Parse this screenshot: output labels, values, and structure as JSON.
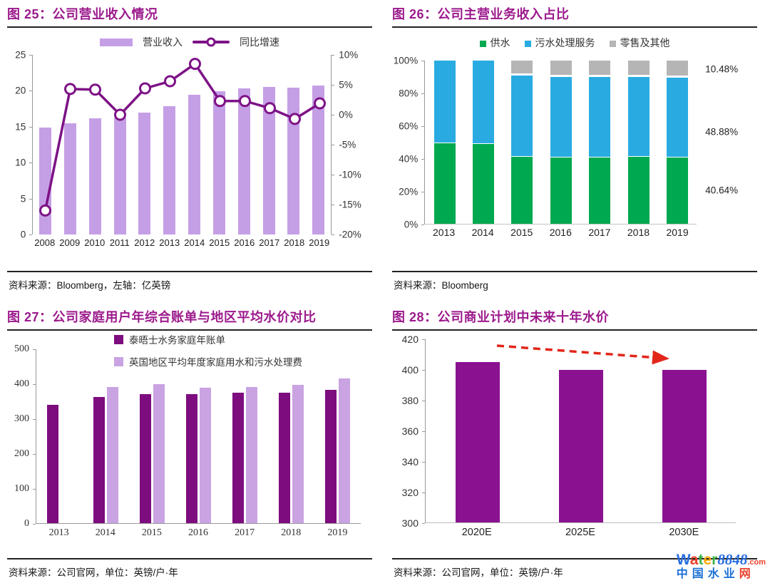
{
  "accent": {
    "title_color": "#9c1a8c",
    "rule_color": "#222222"
  },
  "panels": [
    {
      "title": "图 25：公司营业收入情况",
      "source": "资料来源：Bloomberg，左轴：亿英镑"
    },
    {
      "title": "图 26：公司主营业务收入占比",
      "source": "资料来源：Bloomberg"
    },
    {
      "title": "图 27：公司家庭用户年综合账单与地区平均水价对比",
      "source": "资料来源：公司官网，单位：英镑/户·年"
    },
    {
      "title": "图 28：公司商业计划中未来十年水价",
      "source": "资料来源：公司官网，单位：英镑/户·年"
    }
  ],
  "chart_data": [
    {
      "type": "bar+line",
      "title": "公司营业收入情况",
      "categories": [
        "2008",
        "2009",
        "2010",
        "2011",
        "2012",
        "2013",
        "2014",
        "2015",
        "2016",
        "2017",
        "2018",
        "2019"
      ],
      "series": [
        {
          "name": "营业收入",
          "type": "bar",
          "axis": "left",
          "color": "#c59fe6",
          "values": [
            14.9,
            15.5,
            16.2,
            16.3,
            17.0,
            17.9,
            19.4,
            19.9,
            20.3,
            20.5,
            20.4,
            20.7
          ]
        },
        {
          "name": "同比增速",
          "type": "line",
          "axis": "right",
          "color": "#7d1286",
          "values": [
            -16.0,
            4.3,
            4.2,
            0.0,
            4.4,
            5.6,
            8.5,
            2.3,
            2.3,
            1.1,
            -0.7,
            1.9
          ]
        }
      ],
      "left_axis": {
        "min": 0,
        "max": 25,
        "ticks": [
          25,
          20,
          15,
          10,
          5,
          0
        ],
        "unit": "亿英镑"
      },
      "right_axis": {
        "min": -20,
        "max": 10,
        "ticks": [
          10,
          5,
          0,
          -5,
          -10,
          -15,
          -20
        ],
        "format": "%"
      },
      "legend_position": "top",
      "grid": false
    },
    {
      "type": "stacked-bar",
      "title": "公司主营业务收入占比",
      "categories": [
        "2013",
        "2014",
        "2015",
        "2016",
        "2017",
        "2018",
        "2019"
      ],
      "series": [
        {
          "name": "供水",
          "color": "#00a84f",
          "values": [
            49.5,
            49,
            41,
            40.5,
            40.5,
            41,
            40.64
          ]
        },
        {
          "name": "污水处理服务",
          "color": "#29abe2",
          "values": [
            50.5,
            51,
            50,
            49.5,
            49.5,
            49,
            48.88
          ]
        },
        {
          "name": "零售及其他",
          "color": "#b5b5b5",
          "values": [
            0,
            0,
            9,
            10,
            10,
            10,
            10.48
          ]
        }
      ],
      "y_axis": {
        "min": 0,
        "max": 100,
        "ticks": [
          100,
          80,
          60,
          40,
          20,
          0
        ],
        "format": "%"
      },
      "annotations": [
        "10.48%",
        "48.88%",
        "40.64%"
      ],
      "legend_position": "top",
      "grid": false
    },
    {
      "type": "grouped-bar",
      "title": "公司家庭用户年综合账单与地区平均水价对比",
      "categories": [
        "2013",
        "2014",
        "2015",
        "2016",
        "2017",
        "2018",
        "2019"
      ],
      "series": [
        {
          "name": "泰晤士水务家庭年账单",
          "color": "#7d0c7e",
          "values": [
            340,
            362,
            371,
            370,
            376,
            375,
            383
          ]
        },
        {
          "name": "英国地区平均年度家庭用水和污水处理费",
          "color": "#c9a3e2",
          "values": [
            null,
            392,
            400,
            389,
            392,
            398,
            416
          ]
        }
      ],
      "y_axis": {
        "min": 0,
        "max": 500,
        "ticks": [
          500,
          400,
          300,
          200,
          100,
          0
        ],
        "unit": "英镑/户·年"
      },
      "legend_position": "top-left",
      "grid": false
    },
    {
      "type": "bar",
      "title": "公司商业计划中未来十年水价",
      "categories": [
        "2020E",
        "2025E",
        "2030E"
      ],
      "values": [
        405,
        400,
        400
      ],
      "color": "#8a1190",
      "y_axis": {
        "min": 300,
        "max": 420,
        "ticks": [
          420,
          400,
          380,
          360,
          340,
          320,
          300
        ],
        "unit": "英镑/户·年"
      },
      "arrow_color": "#e2261a",
      "grid": false
    }
  ],
  "watermark": {
    "line1": [
      {
        "t": "W",
        "c": "#2b6fe0"
      },
      {
        "t": "a",
        "c": "#e8412c"
      },
      {
        "t": "t",
        "c": "#3cb54a"
      },
      {
        "t": "e",
        "c": "#f7a809"
      },
      {
        "t": "r",
        "c": "#3cb54a"
      },
      {
        "t": "8848",
        "c": "#2b6fe0",
        "italic": true
      },
      {
        "t": ".com",
        "c": "#e8412c",
        "small": true
      }
    ],
    "line2": [
      {
        "t": "中",
        "c": "#1a6fd4"
      },
      {
        "t": "国",
        "c": "#1a6fd4"
      },
      {
        "t": "水",
        "c": "#1a6fd4"
      },
      {
        "t": "业",
        "c": "#1a6fd4"
      },
      {
        "t": "网",
        "c": "#e8412c"
      }
    ]
  }
}
